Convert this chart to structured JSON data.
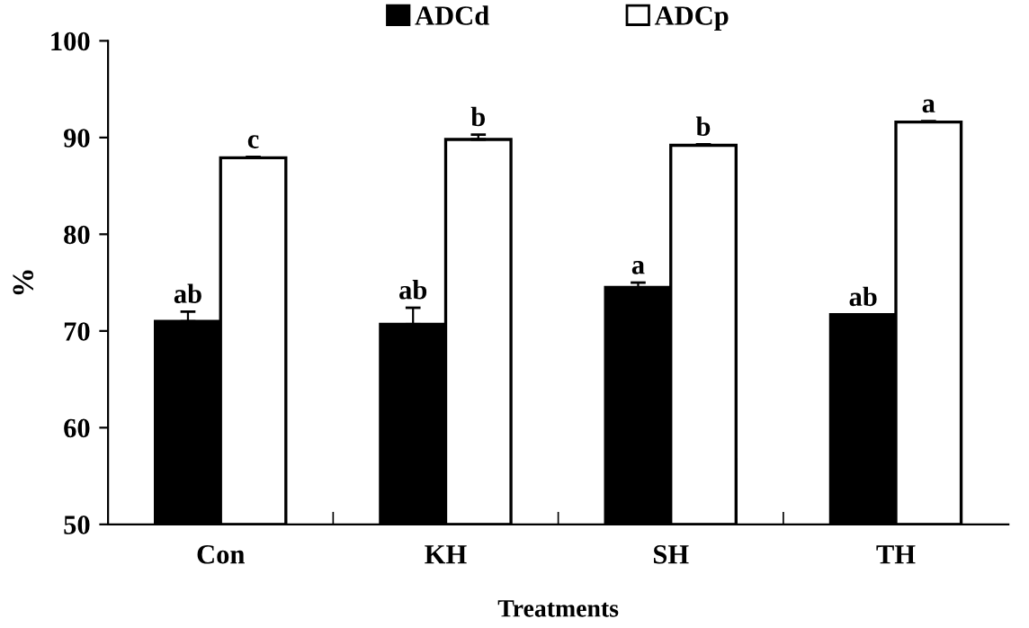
{
  "chart_data": {
    "type": "bar",
    "xlabel": "Treatments",
    "ylabel": "%",
    "categories": [
      "Con",
      "KH",
      "SH",
      "TH"
    ],
    "series": [
      {
        "name": "ADCd",
        "color": "#000000",
        "values": [
          71.0,
          70.7,
          74.5,
          71.7
        ],
        "errors": [
          1.0,
          1.7,
          0.5,
          null
        ],
        "value_labels": [
          "ab",
          "ab",
          "a",
          "ab"
        ]
      },
      {
        "name": "ADCp",
        "color": "#ffffff",
        "values": [
          87.9,
          89.8,
          89.2,
          91.6
        ],
        "errors": [
          0.1,
          0.5,
          0.1,
          0.1
        ],
        "value_labels": [
          "c",
          "b",
          "b",
          "a"
        ]
      }
    ],
    "ylim": [
      50,
      100
    ],
    "yticks": [
      50,
      60,
      70,
      80,
      90,
      100
    ],
    "legend": "top"
  }
}
